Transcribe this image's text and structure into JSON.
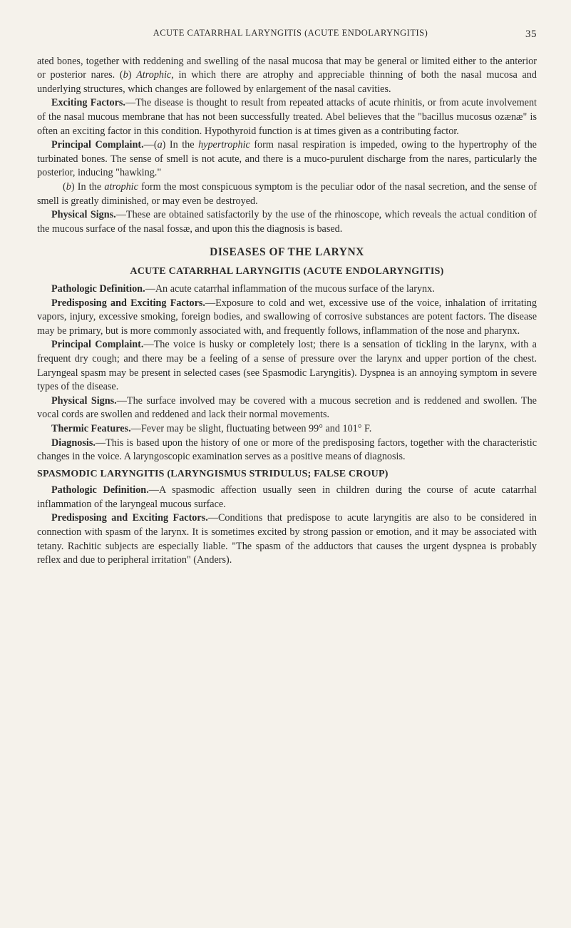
{
  "header": {
    "running_title": "ACUTE CATARRHAL LARYNGITIS (ACUTE ENDOLARYNGITIS)",
    "page_number": "35"
  },
  "para1": "ated bones, together with reddening and swelling of the nasal mucosa that may be general or limited either to the anterior or posterior nares. (b) Atrophic, in which there are atrophy and appreciable thinning of both the nasal mucosa and underlying structures, which changes are followed by enlargement of the nasal cavities.",
  "exciting_factors": {
    "label": "Exciting Factors.",
    "text": "—The disease is thought to result from repeated attacks of acute rhinitis, or from acute involvement of the nasal mucous membrane that has not been successfully treated. Abel believes that the \"bacillus mucosus ozænæ\" is often an exciting factor in this condition. Hypothyroid function is at times given as a contributing factor."
  },
  "principal_complaint_1": {
    "label": "Principal Complaint.",
    "text_a": "—(a) In the hypertrophic form nasal respiration is impeded, owing to the hypertrophy of the turbinated bones. The sense of smell is not acute, and there is a muco-purulent discharge from the nares, particularly the posterior, inducing \"hawking.\"",
    "text_b": "(b) In the atrophic form the most conspicuous symptom is the peculiar odor of the nasal secretion, and the sense of smell is greatly diminished, or may even be destroyed."
  },
  "physical_signs_1": {
    "label": "Physical Signs.",
    "text": "—These are obtained satisfactorily by the use of the rhinoscope, which reveals the actual condition of the mucous surface of the nasal fossæ, and upon this the diagnosis is based."
  },
  "h2_larynx": "DISEASES OF THE LARYNX",
  "h3_acute": "ACUTE CATARRHAL LARYNGITIS (ACUTE ENDOLARYNGITIS)",
  "pathologic_def_1": {
    "label": "Pathologic Definition.",
    "text": "—An acute catarrhal inflammation of the mucous surface of the larynx."
  },
  "predisposing_1": {
    "label": "Predisposing and Exciting Factors.",
    "text": "—Exposure to cold and wet, excessive use of the voice, inhalation of irritating vapors, injury, excessive smoking, foreign bodies, and swallowing of corrosive substances are potent factors. The disease may be primary, but is more commonly associated with, and frequently follows, inflammation of the nose and pharynx."
  },
  "principal_complaint_2": {
    "label": "Principal Complaint.",
    "text": "—The voice is husky or completely lost; there is a sensation of tickling in the larynx, with a frequent dry cough; and there may be a feeling of a sense of pressure over the larynx and upper portion of the chest. Laryngeal spasm may be present in selected cases (see Spasmodic Laryngitis). Dyspnea is an annoying symptom in severe types of the disease."
  },
  "physical_signs_2": {
    "label": "Physical Signs.",
    "text": "—The surface involved may be covered with a mucous secretion and is reddened and swollen. The vocal cords are swollen and reddened and lack their normal movements."
  },
  "thermic": {
    "label": "Thermic Features.",
    "text": "—Fever may be slight, fluctuating between 99° and 101° F."
  },
  "diagnosis": {
    "label": "Diagnosis.",
    "text": "—This is based upon the history of one or more of the predisposing factors, together with the characteristic changes in the voice. A laryngoscopic examination serves as a positive means of diagnosis."
  },
  "h3_spasmodic": "SPASMODIC LARYNGITIS (LARYNGISMUS STRIDULUS; FALSE CROUP)",
  "pathologic_def_2": {
    "label": "Pathologic Definition.",
    "text": "—A spasmodic affection usually seen in children during the course of acute catarrhal inflammation of the laryngeal mucous surface."
  },
  "predisposing_2": {
    "label": "Predisposing and Exciting Factors.",
    "text": "—Conditions that predispose to acute laryngitis are also to be considered in connection with spasm of the larynx. It is sometimes excited by strong passion or emotion, and it may be associated with tetany. Rachitic subjects are especially liable. \"The spasm of the adductors that causes the urgent dyspnea is probably reflex and due to peripheral irritation\" (Anders)."
  }
}
